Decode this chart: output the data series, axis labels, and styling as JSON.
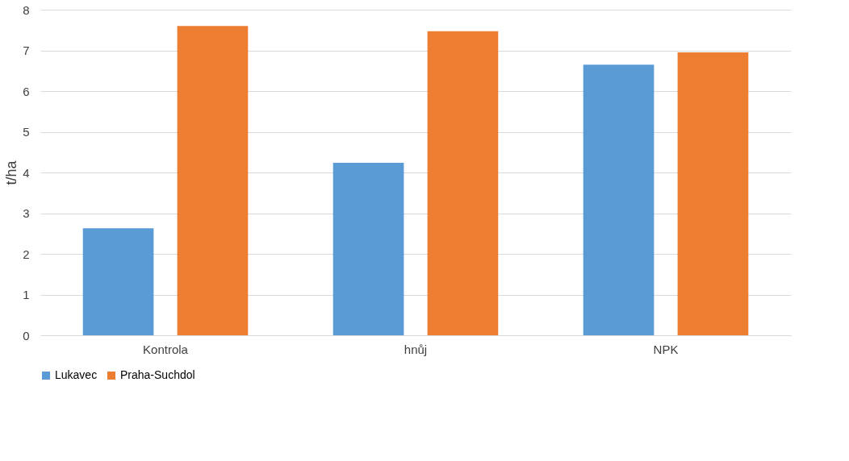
{
  "chart_data": {
    "type": "bar",
    "ylabel": "t/ha",
    "categories": [
      "Kontrola",
      "hnůj",
      "NPK"
    ],
    "series": [
      {
        "name": "Lukavec",
        "color": "#5b9bd5",
        "values": [
          2.63,
          4.24,
          6.65
        ]
      },
      {
        "name": "Praha-Suchdol",
        "color": "#ed7d31",
        "values": [
          7.6,
          7.47,
          6.95
        ]
      }
    ],
    "ylim": [
      0,
      8
    ],
    "yticks": [
      0,
      1,
      2,
      3,
      4,
      5,
      6,
      7,
      8
    ],
    "grid": "y",
    "legend": "bottom"
  }
}
